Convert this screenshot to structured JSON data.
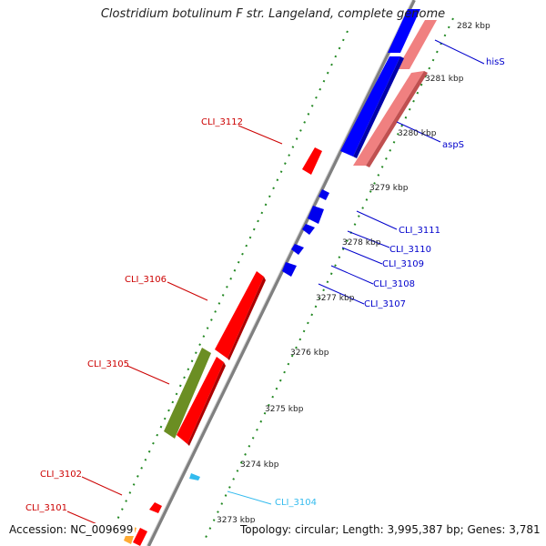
{
  "title": "Clostridium botulinum F str. Langeland, complete genome",
  "footer": {
    "accession": "Accession: NC_009699",
    "summary": "Topology: circular; Length: 3,995,387 bp; Genes: 3,781"
  },
  "ticks": [
    "282 kbp",
    "3281 kbp",
    "3280 kbp",
    "3279 kbp",
    "3278 kbp",
    "3277 kbp",
    "3276 kbp",
    "3275 kbp",
    "3274 kbp",
    "3273 kbp"
  ],
  "colors": {
    "forward": "#ff0000",
    "reverse": "#0000ff",
    "reverse_rna": "#f08080",
    "other": "#6b8e23",
    "cyan": "#33bbee",
    "label_red": "#cc0000",
    "label_blue": "#0000cc",
    "label_cyan": "#33bbee",
    "backbone": "#808080",
    "dots": "#228822"
  },
  "labels": {
    "hisS": "hisS",
    "aspS": "aspS",
    "cli3111": "CLI_3111",
    "cli3110": "CLI_3110",
    "cli3109": "CLI_3109",
    "cli3108": "CLI_3108",
    "cli3107": "CLI_3107",
    "cli3112": "CLI_3112",
    "cli3106": "CLI_3106",
    "cli3105": "CLI_3105",
    "cli3102": "CLI_3102",
    "cli3101": "CLI_3101",
    "cli3104": "CLI_3104"
  }
}
